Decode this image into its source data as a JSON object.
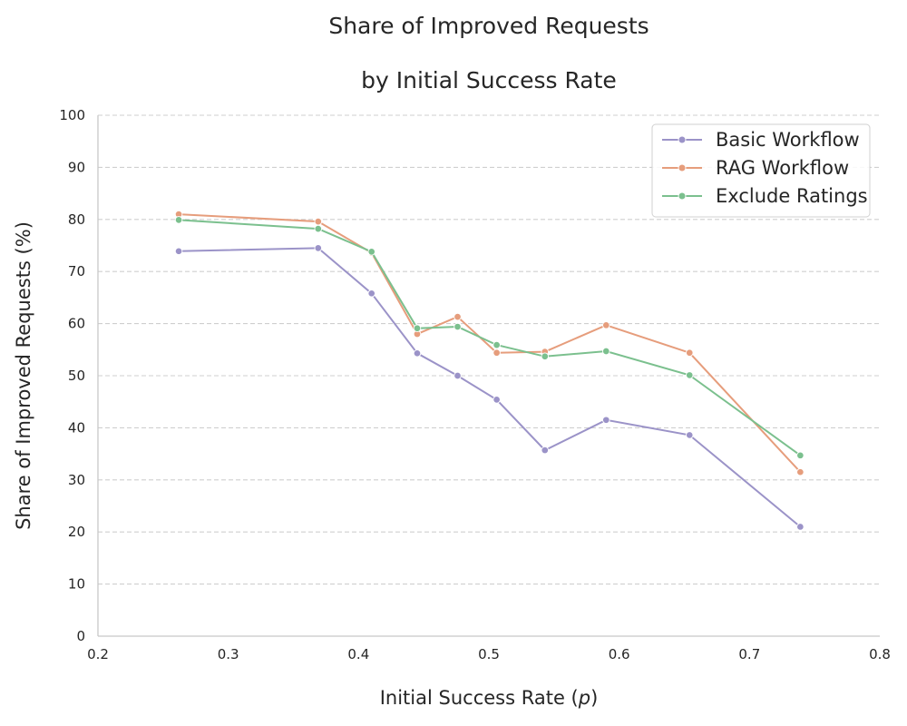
{
  "chart_data": {
    "type": "line",
    "title": "Share of Improved Requests",
    "subtitle": "by Initial Success Rate",
    "xlabel": "Initial Success Rate (",
    "xlabel_var": "p",
    "xlabel_suffix": ")",
    "ylabel": "Share of Improved Requests (%)",
    "xlim": [
      0.2,
      0.8
    ],
    "ylim": [
      0,
      100
    ],
    "x_ticks": [
      "0.2",
      "0.3",
      "0.4",
      "0.5",
      "0.6",
      "0.7",
      "0.8"
    ],
    "y_ticks": [
      "0",
      "10",
      "20",
      "30",
      "40",
      "50",
      "60",
      "70",
      "80",
      "90",
      "100"
    ],
    "grid": "horizontal dashed",
    "legend_position": "top-right",
    "x": [
      0.262,
      0.369,
      0.41,
      0.445,
      0.476,
      0.506,
      0.543,
      0.59,
      0.654,
      0.739
    ],
    "series": [
      {
        "name": "Basic Workflow",
        "color": "#9b93c8",
        "values": [
          73.9,
          74.5,
          65.8,
          54.3,
          50.0,
          45.4,
          35.7,
          41.5,
          38.6,
          21.0
        ]
      },
      {
        "name": "RAG Workflow",
        "color": "#e69d7c",
        "values": [
          81.0,
          79.6,
          73.6,
          58.0,
          61.3,
          54.4,
          54.6,
          59.7,
          54.4,
          31.5
        ]
      },
      {
        "name": "Exclude Ratings",
        "color": "#7bc08e",
        "values": [
          79.9,
          78.2,
          73.8,
          59.1,
          59.4,
          55.9,
          53.7,
          54.7,
          50.1,
          34.7
        ]
      }
    ]
  }
}
